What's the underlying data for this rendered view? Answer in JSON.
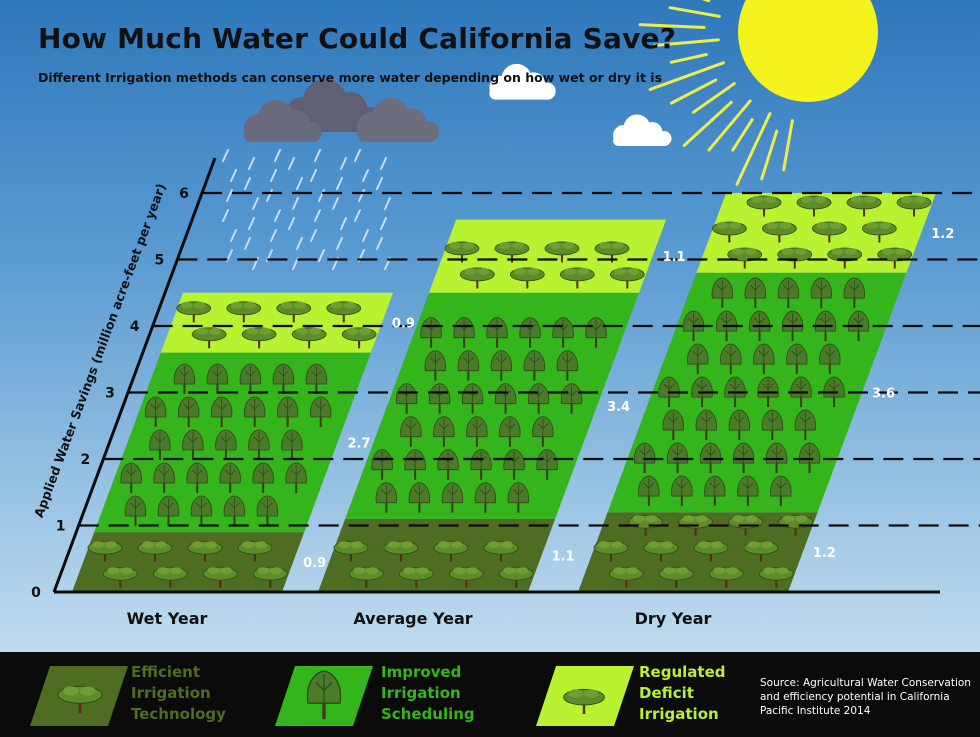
{
  "title": "How Much Water Could California Save?",
  "subtitle": "Different Irrigation methods can conserve more water depending on how wet or dry it is",
  "chart_data": {
    "type": "bar",
    "stacked": true,
    "categories": [
      "Wet Year",
      "Average Year",
      "Dry Year"
    ],
    "series": [
      {
        "name": "Efficient Irrigation Technology",
        "values": [
          0.9,
          1.1,
          1.2
        ],
        "labels": [
          "0.9",
          "1.1",
          "1.2"
        ],
        "color": "#4e6d23"
      },
      {
        "name": "Improved Irrigation Scheduling",
        "values": [
          2.7,
          3.4,
          3.6
        ],
        "labels": [
          "2.7",
          "3.4",
          "3.6"
        ],
        "color": "#33b51b"
      },
      {
        "name": "Regulated Deficit Irrigation",
        "values": [
          0.9,
          1.1,
          1.2
        ],
        "labels": [
          "0.9",
          "1.1",
          "1.2"
        ],
        "color": "#b9f230"
      }
    ],
    "ylabel": "Applied Water Savings (million acre-feet per year)",
    "yticks": [
      "0",
      "1",
      "2",
      "3",
      "4",
      "5",
      "6"
    ],
    "ylim": [
      0,
      6
    ],
    "grid": true
  },
  "legend": {
    "items": [
      {
        "label": "Efficient\nIrrigation\nTechnology",
        "text_color": "#4e6d23",
        "icon": "shrub-icon"
      },
      {
        "label": "Improved\nIrrigation\nScheduling",
        "text_color": "#33b51b",
        "icon": "tree-icon"
      },
      {
        "label": "Regulated\nDeficit\nIrrigation",
        "text_color": "#b9f230",
        "icon": "shrub-icon"
      }
    ]
  },
  "source": "Source: Agricultural Water Conservation\nand efficiency potential in California\nPacific Institute 2014",
  "decorations": [
    "sun-icon",
    "rain-cloud-icon",
    "cloud-icon"
  ]
}
